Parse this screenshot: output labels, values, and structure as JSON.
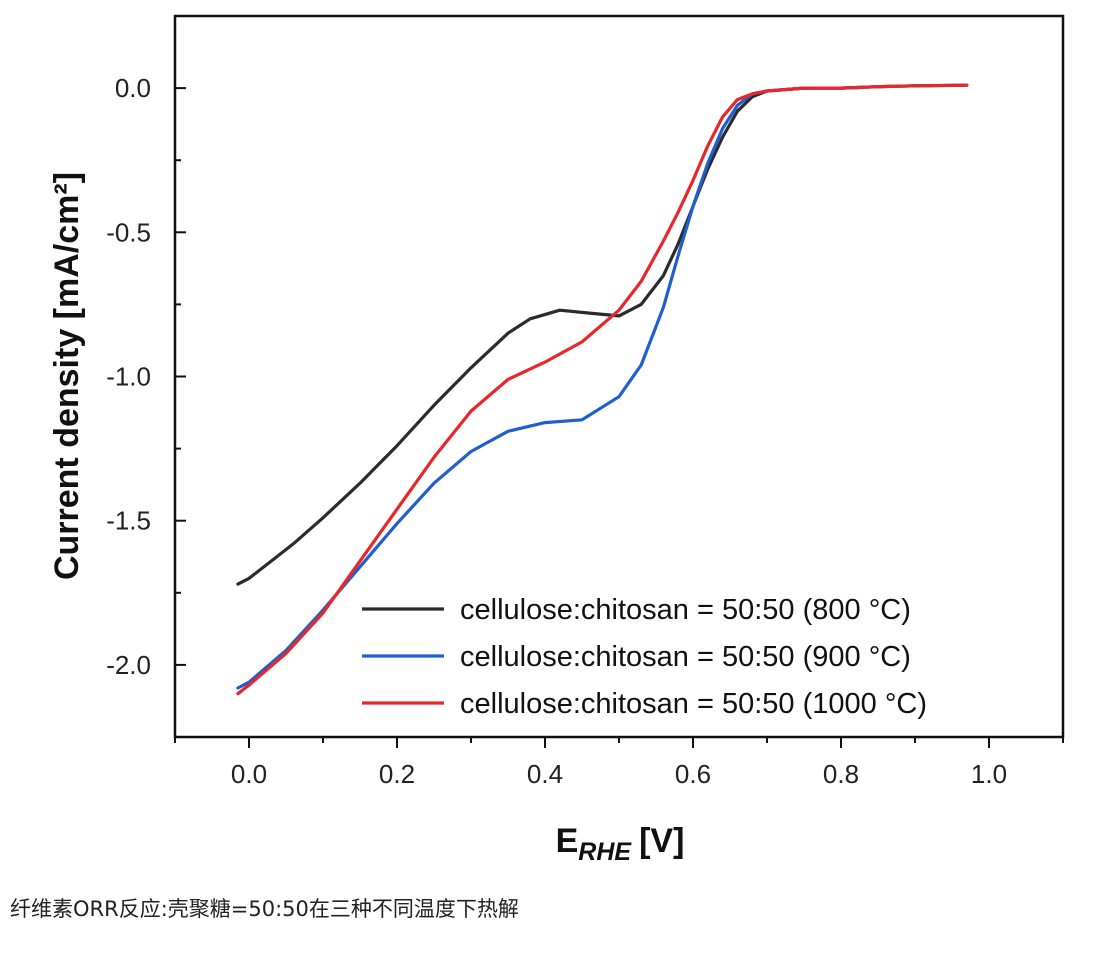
{
  "chart_data": {
    "type": "line",
    "xlabel_main": "E",
    "xlabel_sub": "RHE",
    "xlabel_unit": "[V]",
    "ylabel": "Current density [mA/cm²]",
    "xlim": [
      -0.1,
      1.1
    ],
    "ylim": [
      -2.25,
      0.25
    ],
    "xticks": [
      0.0,
      0.2,
      0.4,
      0.6,
      0.8,
      1.0
    ],
    "xtick_labels": [
      "0.0",
      "0.2",
      "0.4",
      "0.6",
      "0.8",
      "1.0"
    ],
    "yticks": [
      0.0,
      -0.5,
      -1.0,
      -1.5,
      -2.0
    ],
    "ytick_labels": [
      "0.0",
      "-0.5",
      "-1.0",
      "-1.5",
      "-2.0"
    ],
    "grid": false,
    "legend_position": "bottom-right",
    "series": [
      {
        "name": "cellulose:chitosan = 50:50 (800 °C)",
        "color": "#2b2b2b",
        "x": [
          -0.015,
          0.0,
          0.03,
          0.06,
          0.1,
          0.15,
          0.2,
          0.25,
          0.3,
          0.35,
          0.38,
          0.42,
          0.46,
          0.5,
          0.53,
          0.56,
          0.58,
          0.6,
          0.62,
          0.64,
          0.66,
          0.68,
          0.7,
          0.75,
          0.8,
          0.85,
          0.9,
          0.97
        ],
        "y": [
          -1.72,
          -1.7,
          -1.64,
          -1.58,
          -1.49,
          -1.37,
          -1.24,
          -1.1,
          -0.97,
          -0.85,
          -0.8,
          -0.77,
          -0.78,
          -0.79,
          -0.75,
          -0.65,
          -0.54,
          -0.41,
          -0.28,
          -0.17,
          -0.08,
          -0.03,
          -0.01,
          0.0,
          0.0,
          0.005,
          0.008,
          0.01
        ]
      },
      {
        "name": "cellulose:chitosan = 50:50 (900 °C)",
        "color": "#1f5fd0",
        "x": [
          -0.015,
          0.0,
          0.05,
          0.1,
          0.15,
          0.2,
          0.25,
          0.3,
          0.35,
          0.4,
          0.45,
          0.5,
          0.53,
          0.56,
          0.58,
          0.6,
          0.62,
          0.64,
          0.66,
          0.68,
          0.7,
          0.75,
          0.8,
          0.85,
          0.9,
          0.97
        ],
        "y": [
          -2.08,
          -2.06,
          -1.95,
          -1.81,
          -1.66,
          -1.51,
          -1.37,
          -1.26,
          -1.19,
          -1.16,
          -1.15,
          -1.07,
          -0.96,
          -0.76,
          -0.58,
          -0.41,
          -0.26,
          -0.14,
          -0.06,
          -0.02,
          -0.01,
          0.0,
          0.0,
          0.005,
          0.008,
          0.01
        ]
      },
      {
        "name": "cellulose:chitosan = 50:50 (1000 °C)",
        "color": "#e8262b",
        "x": [
          -0.015,
          0.0,
          0.05,
          0.1,
          0.15,
          0.2,
          0.25,
          0.3,
          0.35,
          0.4,
          0.45,
          0.5,
          0.53,
          0.56,
          0.58,
          0.6,
          0.62,
          0.64,
          0.66,
          0.68,
          0.7,
          0.75,
          0.8,
          0.85,
          0.9,
          0.97
        ],
        "y": [
          -2.1,
          -2.07,
          -1.96,
          -1.82,
          -1.64,
          -1.46,
          -1.28,
          -1.12,
          -1.01,
          -0.95,
          -0.88,
          -0.77,
          -0.67,
          -0.53,
          -0.43,
          -0.32,
          -0.2,
          -0.1,
          -0.04,
          -0.02,
          -0.01,
          0.0,
          0.0,
          0.005,
          0.008,
          0.01
        ]
      }
    ]
  },
  "caption": "纤维素ORR反应:壳聚糖=50:50在三种不同温度下热解"
}
